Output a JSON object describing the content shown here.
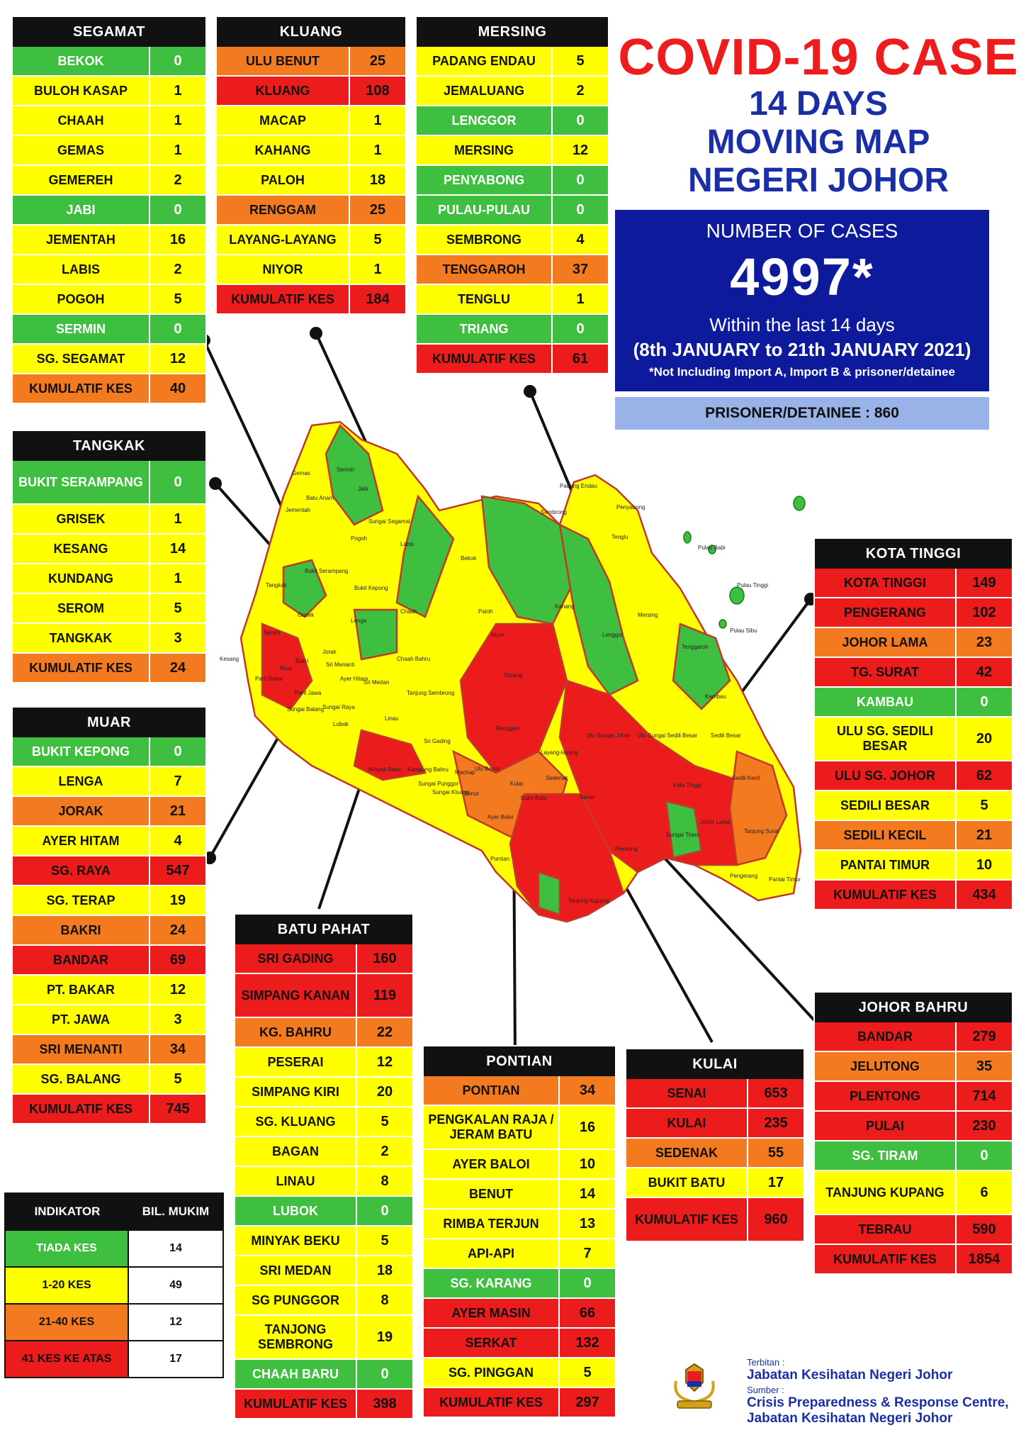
{
  "title": {
    "line1": "COVID-19 CASE",
    "line2": "14 DAYS",
    "line3": "MOVING MAP",
    "line4": "NEGERI JOHOR"
  },
  "stats": {
    "label": "NUMBER OF CASES",
    "total": "4997*",
    "within": "Within the last 14 days",
    "range": "(8th JANUARY to 21th JANUARY 2021)",
    "note": "*Not Including Import A, Import B & prisoner/detainee"
  },
  "prisoner": "PRISONER/DETAINEE : 860",
  "colors": {
    "green": "#3fbf3f",
    "yellow": "#ffff00",
    "orange": "#f47a20",
    "red": "#ed1c1c",
    "stats_bg": "#0e1a9c",
    "title_red": "#ee1c1c",
    "title_blue": "#1a2fa6"
  },
  "districts": {
    "segamat": {
      "name": "SEGAMAT",
      "rows": [
        {
          "area": "BEKOK",
          "cases": "0",
          "level": "green"
        },
        {
          "area": "BULOH KASAP",
          "cases": "1",
          "level": "yellow"
        },
        {
          "area": "CHAAH",
          "cases": "1",
          "level": "yellow"
        },
        {
          "area": "GEMAS",
          "cases": "1",
          "level": "yellow"
        },
        {
          "area": "GEMEREH",
          "cases": "2",
          "level": "yellow"
        },
        {
          "area": "JABI",
          "cases": "0",
          "level": "green"
        },
        {
          "area": "JEMENTAH",
          "cases": "16",
          "level": "yellow"
        },
        {
          "area": "LABIS",
          "cases": "2",
          "level": "yellow"
        },
        {
          "area": "POGOH",
          "cases": "5",
          "level": "yellow"
        },
        {
          "area": "SERMIN",
          "cases": "0",
          "level": "green"
        },
        {
          "area": "SG. SEGAMAT",
          "cases": "12",
          "level": "yellow"
        },
        {
          "area": "KUMULATIF KES",
          "cases": "40",
          "level": "orange"
        }
      ]
    },
    "kluang": {
      "name": "KLUANG",
      "rows": [
        {
          "area": "ULU BENUT",
          "cases": "25",
          "level": "orange"
        },
        {
          "area": "KLUANG",
          "cases": "108",
          "level": "red"
        },
        {
          "area": "MACAP",
          "cases": "1",
          "level": "yellow"
        },
        {
          "area": "KAHANG",
          "cases": "1",
          "level": "yellow"
        },
        {
          "area": "PALOH",
          "cases": "18",
          "level": "yellow"
        },
        {
          "area": "RENGGAM",
          "cases": "25",
          "level": "orange"
        },
        {
          "area": "LAYANG-LAYANG",
          "cases": "5",
          "level": "yellow"
        },
        {
          "area": "NIYOR",
          "cases": "1",
          "level": "yellow"
        },
        {
          "area": "KUMULATIF KES",
          "cases": "184",
          "level": "red"
        }
      ]
    },
    "mersing": {
      "name": "MERSING",
      "rows": [
        {
          "area": "PADANG ENDAU",
          "cases": "5",
          "level": "yellow"
        },
        {
          "area": "JEMALUANG",
          "cases": "2",
          "level": "yellow"
        },
        {
          "area": "LENGGOR",
          "cases": "0",
          "level": "green"
        },
        {
          "area": "MERSING",
          "cases": "12",
          "level": "yellow"
        },
        {
          "area": "PENYABONG",
          "cases": "0",
          "level": "green"
        },
        {
          "area": "PULAU-PULAU",
          "cases": "0",
          "level": "green"
        },
        {
          "area": "SEMBRONG",
          "cases": "4",
          "level": "yellow"
        },
        {
          "area": "TENGGAROH",
          "cases": "37",
          "level": "orange"
        },
        {
          "area": "TENGLU",
          "cases": "1",
          "level": "yellow"
        },
        {
          "area": "TRIANG",
          "cases": "0",
          "level": "green"
        },
        {
          "area": "KUMULATIF KES",
          "cases": "61",
          "level": "red"
        }
      ]
    },
    "tangkak": {
      "name": "TANGKAK",
      "rows": [
        {
          "area": "BUKIT SERAMPANG",
          "cases": "0",
          "level": "green",
          "tall": true
        },
        {
          "area": "GRISEK",
          "cases": "1",
          "level": "yellow"
        },
        {
          "area": "KESANG",
          "cases": "14",
          "level": "yellow"
        },
        {
          "area": "KUNDANG",
          "cases": "1",
          "level": "yellow"
        },
        {
          "area": "SEROM",
          "cases": "5",
          "level": "yellow"
        },
        {
          "area": "TANGKAK",
          "cases": "3",
          "level": "yellow"
        },
        {
          "area": "KUMULATIF KES",
          "cases": "24",
          "level": "orange"
        }
      ]
    },
    "muar": {
      "name": "MUAR",
      "rows": [
        {
          "area": "BUKIT KEPONG",
          "cases": "0",
          "level": "green"
        },
        {
          "area": "LENGA",
          "cases": "7",
          "level": "yellow"
        },
        {
          "area": "JORAK",
          "cases": "21",
          "level": "orange"
        },
        {
          "area": "AYER HITAM",
          "cases": "4",
          "level": "yellow"
        },
        {
          "area": "SG. RAYA",
          "cases": "547",
          "level": "red"
        },
        {
          "area": "SG. TERAP",
          "cases": "19",
          "level": "yellow"
        },
        {
          "area": "BAKRI",
          "cases": "24",
          "level": "orange"
        },
        {
          "area": "BANDAR",
          "cases": "69",
          "level": "red"
        },
        {
          "area": "PT. BAKAR",
          "cases": "12",
          "level": "yellow"
        },
        {
          "area": "PT. JAWA",
          "cases": "3",
          "level": "yellow"
        },
        {
          "area": "SRI MENANTI",
          "cases": "34",
          "level": "orange"
        },
        {
          "area": "SG. BALANG",
          "cases": "5",
          "level": "yellow"
        },
        {
          "area": "KUMULATIF KES",
          "cases": "745",
          "level": "red"
        }
      ]
    },
    "batu_pahat": {
      "name": "BATU PAHAT",
      "rows": [
        {
          "area": "SRI GADING",
          "cases": "160",
          "level": "red"
        },
        {
          "area": "SIMPANG KANAN",
          "cases": "119",
          "level": "red",
          "tall": true
        },
        {
          "area": "KG. BAHRU",
          "cases": "22",
          "level": "orange"
        },
        {
          "area": "PESERAI",
          "cases": "12",
          "level": "yellow"
        },
        {
          "area": "SIMPANG KIRI",
          "cases": "20",
          "level": "yellow"
        },
        {
          "area": "SG. KLUANG",
          "cases": "5",
          "level": "yellow"
        },
        {
          "area": "BAGAN",
          "cases": "2",
          "level": "yellow"
        },
        {
          "area": "LINAU",
          "cases": "8",
          "level": "yellow"
        },
        {
          "area": "LUBOK",
          "cases": "0",
          "level": "green"
        },
        {
          "area": "MINYAK BEKU",
          "cases": "5",
          "level": "yellow"
        },
        {
          "area": "SRI MEDAN",
          "cases": "18",
          "level": "yellow"
        },
        {
          "area": "SG PUNGGOR",
          "cases": "8",
          "level": "yellow"
        },
        {
          "area": "TANJONG SEMBRONG",
          "cases": "19",
          "level": "yellow",
          "tall": true
        },
        {
          "area": "CHAAH BARU",
          "cases": "0",
          "level": "green"
        },
        {
          "area": "KUMULATIF KES",
          "cases": "398",
          "level": "red"
        }
      ]
    },
    "pontian": {
      "name": "PONTIAN",
      "rows": [
        {
          "area": "PONTIAN",
          "cases": "34",
          "level": "orange"
        },
        {
          "area": "PENGKALAN RAJA / JERAM BATU",
          "cases": "16",
          "level": "yellow",
          "tall": true
        },
        {
          "area": "AYER BALOI",
          "cases": "10",
          "level": "yellow"
        },
        {
          "area": "BENUT",
          "cases": "14",
          "level": "yellow"
        },
        {
          "area": "RIMBA TERJUN",
          "cases": "13",
          "level": "yellow"
        },
        {
          "area": "API-API",
          "cases": "7",
          "level": "yellow"
        },
        {
          "area": "SG. KARANG",
          "cases": "0",
          "level": "green"
        },
        {
          "area": "AYER MASIN",
          "cases": "66",
          "level": "red"
        },
        {
          "area": "SERKAT",
          "cases": "132",
          "level": "red"
        },
        {
          "area": "SG. PINGGAN",
          "cases": "5",
          "level": "yellow"
        },
        {
          "area": "KUMULATIF KES",
          "cases": "297",
          "level": "red"
        }
      ]
    },
    "kulai": {
      "name": "KULAI",
      "rows": [
        {
          "area": "SENAI",
          "cases": "653",
          "level": "red"
        },
        {
          "area": "KULAI",
          "cases": "235",
          "level": "red"
        },
        {
          "area": "SEDENAK",
          "cases": "55",
          "level": "orange"
        },
        {
          "area": "BUKIT BATU",
          "cases": "17",
          "level": "yellow"
        },
        {
          "area": "KUMULATIF KES",
          "cases": "960",
          "level": "red",
          "tall": true
        }
      ]
    },
    "kota_tinggi": {
      "name": "KOTA TINGGI",
      "rows": [
        {
          "area": "KOTA TINGGI",
          "cases": "149",
          "level": "red"
        },
        {
          "area": "PENGERANG",
          "cases": "102",
          "level": "red"
        },
        {
          "area": "JOHOR LAMA",
          "cases": "23",
          "level": "orange"
        },
        {
          "area": "TG. SURAT",
          "cases": "42",
          "level": "red"
        },
        {
          "area": "KAMBAU",
          "cases": "0",
          "level": "green"
        },
        {
          "area": "ULU SG. SEDILI BESAR",
          "cases": "20",
          "level": "yellow",
          "tall": true
        },
        {
          "area": "ULU SG. JOHOR",
          "cases": "62",
          "level": "red"
        },
        {
          "area": "SEDILI BESAR",
          "cases": "5",
          "level": "yellow"
        },
        {
          "area": "SEDILI KECIL",
          "cases": "21",
          "level": "orange"
        },
        {
          "area": "PANTAI TIMUR",
          "cases": "10",
          "level": "yellow"
        },
        {
          "area": "KUMULATIF KES",
          "cases": "434",
          "level": "red"
        }
      ]
    },
    "johor_bahru": {
      "name": "JOHOR BAHRU",
      "rows": [
        {
          "area": "BANDAR",
          "cases": "279",
          "level": "red"
        },
        {
          "area": "JELUTONG",
          "cases": "35",
          "level": "orange"
        },
        {
          "area": "PLENTONG",
          "cases": "714",
          "level": "red"
        },
        {
          "area": "PULAI",
          "cases": "230",
          "level": "red"
        },
        {
          "area": "SG. TIRAM",
          "cases": "0",
          "level": "green"
        },
        {
          "area": "TANJUNG KUPANG",
          "cases": "6",
          "level": "yellow",
          "tall": true
        },
        {
          "area": "TEBRAU",
          "cases": "590",
          "level": "red"
        },
        {
          "area": "KUMULATIF KES",
          "cases": "1854",
          "level": "red"
        }
      ]
    }
  },
  "legend": {
    "col1": "INDIKATOR",
    "col2": "BIL. MUKIM",
    "rows": [
      {
        "label": "TIADA KES",
        "count": "14",
        "level": "green"
      },
      {
        "label": "1-20 KES",
        "count": "49",
        "level": "yellow"
      },
      {
        "label": "21-40 KES",
        "count": "12",
        "level": "orange"
      },
      {
        "label": "41 KES KE ATAS",
        "count": "17",
        "level": "red"
      }
    ]
  },
  "credits": {
    "terbitan_label": "Terbitan :",
    "terbitan": "Jabatan Kesihatan Negeri Johor",
    "sumber_label": "Sumber :",
    "sumber1": "Crisis Preparedness & Response Centre,",
    "sumber2": "Jabatan Kesihatan Negeri Johor"
  },
  "map_labels": [
    "Gemas",
    "Batu Anam",
    "Jementah",
    "Sermin",
    "Jabi",
    "Sungai Segamat",
    "Pogoh",
    "Labis",
    "Bekok",
    "Tangkak",
    "Bukit Serampang",
    "Grisek",
    "Bukit Kepong",
    "Lenga",
    "Chaah",
    "Serom",
    "Kesang",
    "Jorak",
    "Chaah Bahru",
    "Paloh",
    "Niyor",
    "Kluang",
    "Sembrong",
    "Padang Endau",
    "Penyabong",
    "Tenglu",
    "Kahang",
    "Lenggor",
    "Mersing",
    "Tenggaroh",
    "Kambau",
    "Sri Medan",
    "Tanjung Sembrong",
    "Renggam",
    "Ulu Sungai Johor",
    "Ulu Sungai Sedili Besar",
    "Sedili Besar",
    "Sedili Kecil",
    "Kota Tinggi",
    "Johor Lama",
    "Tanjung Surat",
    "Pengerang",
    "Pantai Timur",
    "Sri Gading",
    "Layang-layang",
    "Machap",
    "Ulu Benut",
    "Kulai",
    "Sedenak",
    "Senai",
    "Bukit Batu",
    "Benut",
    "Pontian",
    "Ayer Baloi",
    "Tanjung Kupang",
    "Plentong",
    "Sungai Tiram",
    "Pulau Tinggi",
    "Pulau Babi",
    "Pulau Sibu",
    "Muar",
    "Bakri",
    "Parit Bakar",
    "Parit Jawa",
    "Sungai Balang",
    "Lubok",
    "Linau",
    "Minyak Beku",
    "Kampung Bahru",
    "Sungai Punggor",
    "Sungai Kluang",
    "Ayer Hitam",
    "Sri Menanti",
    "Sungai Raya"
  ]
}
